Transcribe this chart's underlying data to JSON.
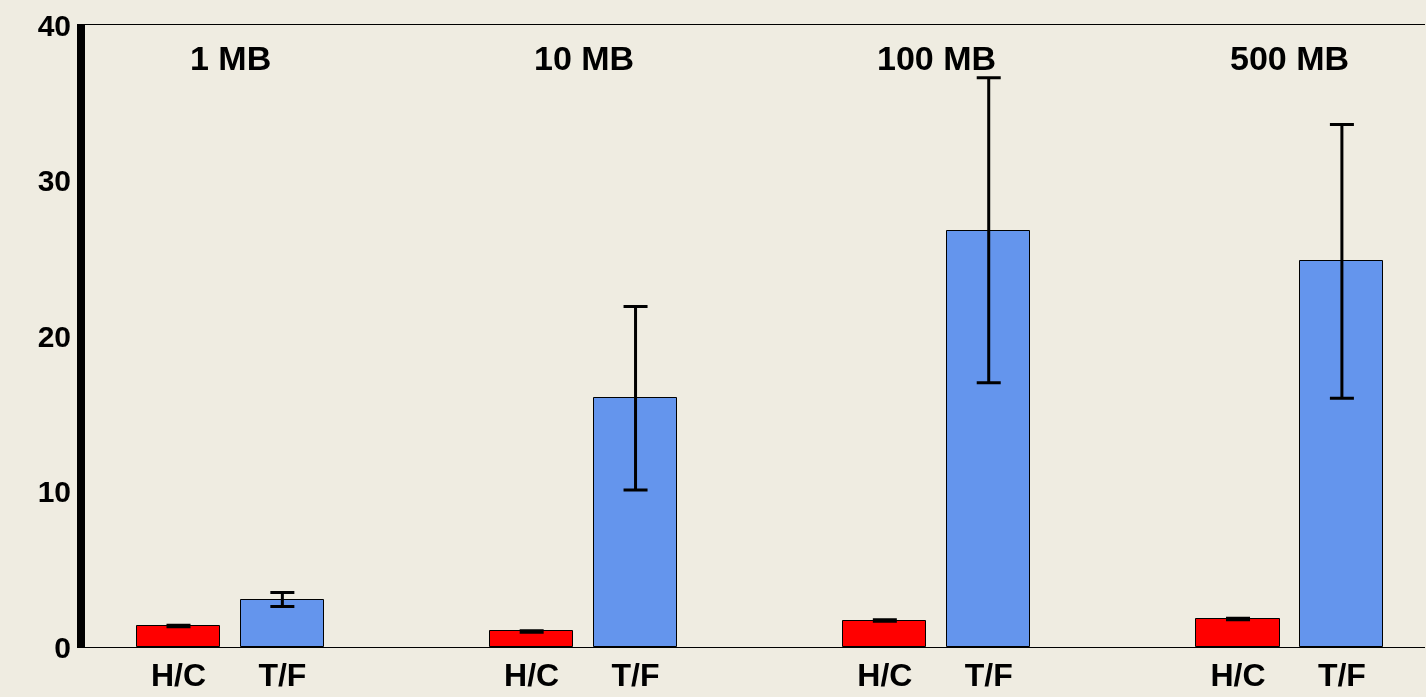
{
  "chart_data": {
    "type": "bar",
    "categories": [
      "H/C",
      "T/F",
      "H/C",
      "T/F",
      "H/C",
      "T/F",
      "H/C",
      "T/F"
    ],
    "values": [
      1.35,
      3.0,
      1.0,
      16.0,
      1.7,
      26.75,
      1.8,
      24.8
    ],
    "colors": [
      "#ff0000",
      "#6495ed",
      "#ff0000",
      "#6495ed",
      "#ff0000",
      "#6495ed",
      "#ff0000",
      "#6495ed"
    ],
    "errors": [
      0.05,
      [
        2.6,
        3.5
      ],
      0.05,
      [
        10.1,
        21.9
      ],
      0.05,
      [
        17.0,
        36.6
      ],
      0.05,
      [
        16.0,
        33.6
      ]
    ],
    "annotations": [
      "1 MB",
      "10 MB",
      "100 MB",
      "500 MB"
    ],
    "ylim": [
      0,
      40
    ],
    "yticks": [
      0,
      10,
      20,
      30,
      40
    ],
    "grid": false
  }
}
